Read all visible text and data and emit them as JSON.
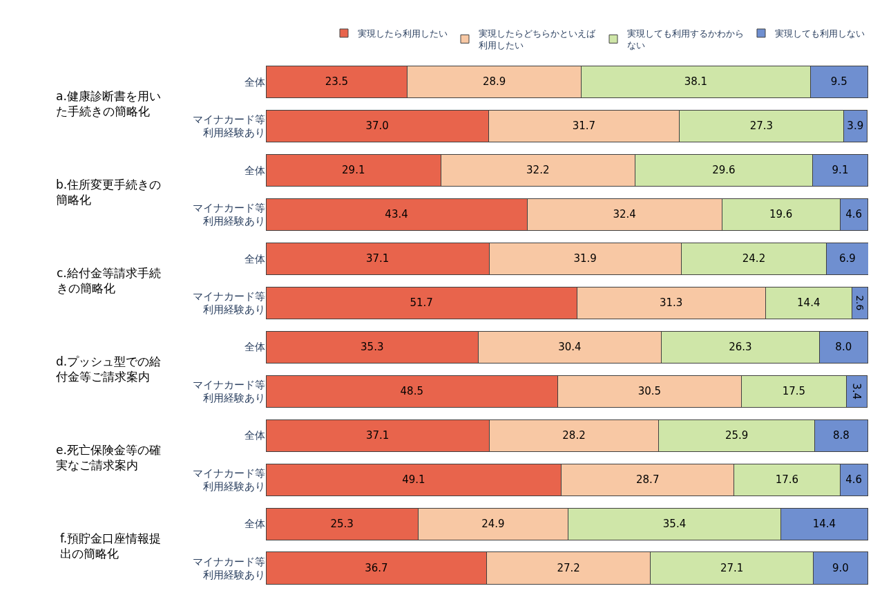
{
  "chart_data": {
    "type": "bar",
    "orientation": "horizontal",
    "stacked": true,
    "legend": "top",
    "categories": [
      "全体",
      "マイナカード等利用経験あり",
      "全体",
      "マイナカード等利用経験あり",
      "全体",
      "マイナカード等利用経験あり",
      "全体",
      "マイナカード等利用経験あり",
      "全体",
      "マイナカード等利用経験あり",
      "全体",
      "マイナカード等利用経験あり"
    ],
    "annotations": [
      "a.健康診断書を用いた手続きの簡略化",
      "b.住所変更手続きの簡略化",
      "c.給付金等請求手続きの簡略化",
      "d.プッシュ型での給付金等ご請求案内",
      "e.死亡保険金等の確実なご請求案内",
      "f.預貯金口座情報提出の簡略化"
    ],
    "series": [
      {
        "name": "実現したら利用したい",
        "color": "#e8644c",
        "values": [
          23.5,
          37.0,
          29.1,
          43.4,
          37.1,
          51.7,
          35.3,
          48.5,
          37.1,
          49.1,
          25.3,
          36.7
        ],
        "value_labels": [
          "23.5",
          "37.0",
          "29.1",
          "43.4",
          "37.1",
          "51.7",
          "35.3",
          "48.5",
          "37.1",
          "49.1",
          "25.3",
          "36.7"
        ]
      },
      {
        "name": "実現したらどちらかといえば利用したい",
        "color": "#f8c8a4",
        "values": [
          28.9,
          31.7,
          32.2,
          32.4,
          31.9,
          31.3,
          30.4,
          30.5,
          28.2,
          28.7,
          24.9,
          27.2
        ],
        "value_labels": [
          "28.9",
          "31.7",
          "32.2",
          "32.4",
          "31.9",
          "31.3",
          "30.4",
          "30.5",
          "28.2",
          "28.7",
          "24.9",
          "27.2"
        ]
      },
      {
        "name": "実現しても利用するかわからない",
        "color": "#cfe6a8",
        "values": [
          38.1,
          27.3,
          29.6,
          19.6,
          24.2,
          14.4,
          26.3,
          17.5,
          25.9,
          17.6,
          35.4,
          27.1
        ],
        "value_labels": [
          "38.1",
          "27.3",
          "29.6",
          "19.6",
          "24.2",
          "14.4",
          "26.3",
          "17.5",
          "25.9",
          "17.6",
          "35.4",
          "27.1"
        ]
      },
      {
        "name": "実現しても利用しない",
        "color": "#6f8fd0",
        "values": [
          9.5,
          3.9,
          9.1,
          4.6,
          6.9,
          2.6,
          8.0,
          3.4,
          8.8,
          4.6,
          14.4,
          9.0
        ],
        "value_labels": [
          "9.5",
          "3.9",
          "9.1",
          "4.6",
          "6.9",
          "2.6",
          "8.0",
          "3.4",
          "8.8",
          "4.6",
          "14.4",
          "9.0"
        ]
      }
    ]
  }
}
